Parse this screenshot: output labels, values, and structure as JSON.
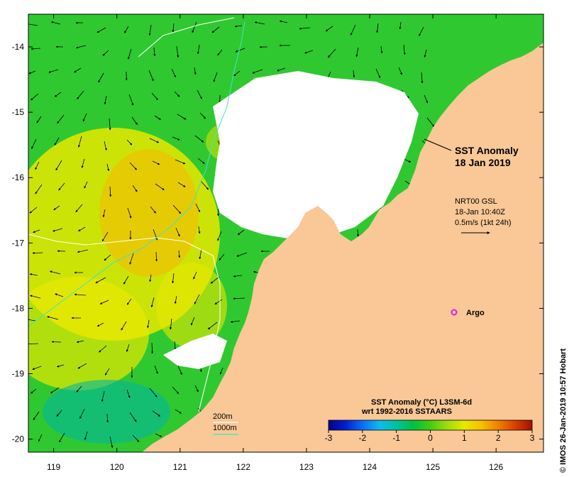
{
  "title": {
    "line1": "SST Anomaly",
    "line2": "18 Jan 2019"
  },
  "currents": {
    "line1": "NRT00 GSL",
    "line2": "18-Jan 10:40Z",
    "line3": "0.5m/s (1kt 24h)"
  },
  "argo_label": "Argo",
  "bathy_legend": {
    "label_200": "200m",
    "label_1000": "1000m",
    "color_200": "#ffffff",
    "color_1000": "#40e0d0"
  },
  "colorbar": {
    "title1": "SST Anomaly (°C) L3SM-6d",
    "title2": "wrt 1992-2016 SSTAARS",
    "ticks": [
      "-3",
      "-2",
      "-1",
      "0",
      "1",
      "2",
      "3"
    ],
    "colors": [
      "#08008a",
      "#0020d0",
      "#0a6ef5",
      "#10b8f0",
      "#00c2a0",
      "#00c040",
      "#44cc10",
      "#a0dc10",
      "#e8e800",
      "#f8c000",
      "#f08000",
      "#d84000",
      "#a01000"
    ]
  },
  "credit": "© IMOS 26-Jan-2019 10:57 Hobart",
  "axes": {
    "x_ticks": [
      "119",
      "120",
      "121",
      "122",
      "123",
      "124",
      "125",
      "126"
    ],
    "y_ticks": [
      "-14",
      "-15",
      "-16",
      "-17",
      "-18",
      "-19",
      "-20"
    ],
    "lon_range": [
      118.6,
      126.75
    ],
    "lat_range": [
      -20.2,
      -13.5
    ]
  },
  "map_colors": {
    "land": "#f9c896",
    "no_data": "#ffffff",
    "warm": "#e8e800",
    "hot": "#f8b800",
    "near_zero": "#30c830",
    "cool": "#00b8a0",
    "argo": "#e020e0"
  }
}
